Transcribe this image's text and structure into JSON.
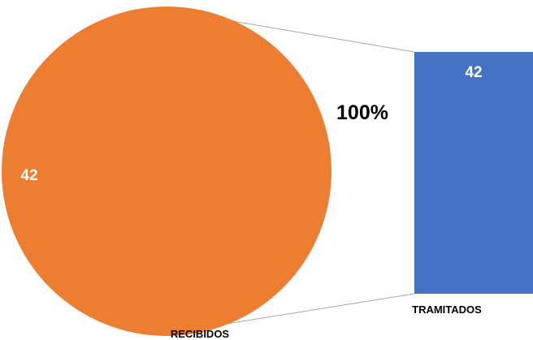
{
  "chart_data": {
    "type": "pie",
    "title": "",
    "pie": {
      "slices": [
        {
          "label": "RECIBIDOS",
          "value": 42,
          "color": "#ED7D31"
        }
      ],
      "category_label": "RECIBIDOS",
      "value_label": "42"
    },
    "bar": {
      "categories": [
        "TRAMITADOS"
      ],
      "values": [
        42
      ],
      "color": "#4472C4",
      "value_label": "42",
      "category_label": "TRAMITADOS"
    },
    "percent_label": "100%",
    "connector_color": "#A6A6A6"
  }
}
